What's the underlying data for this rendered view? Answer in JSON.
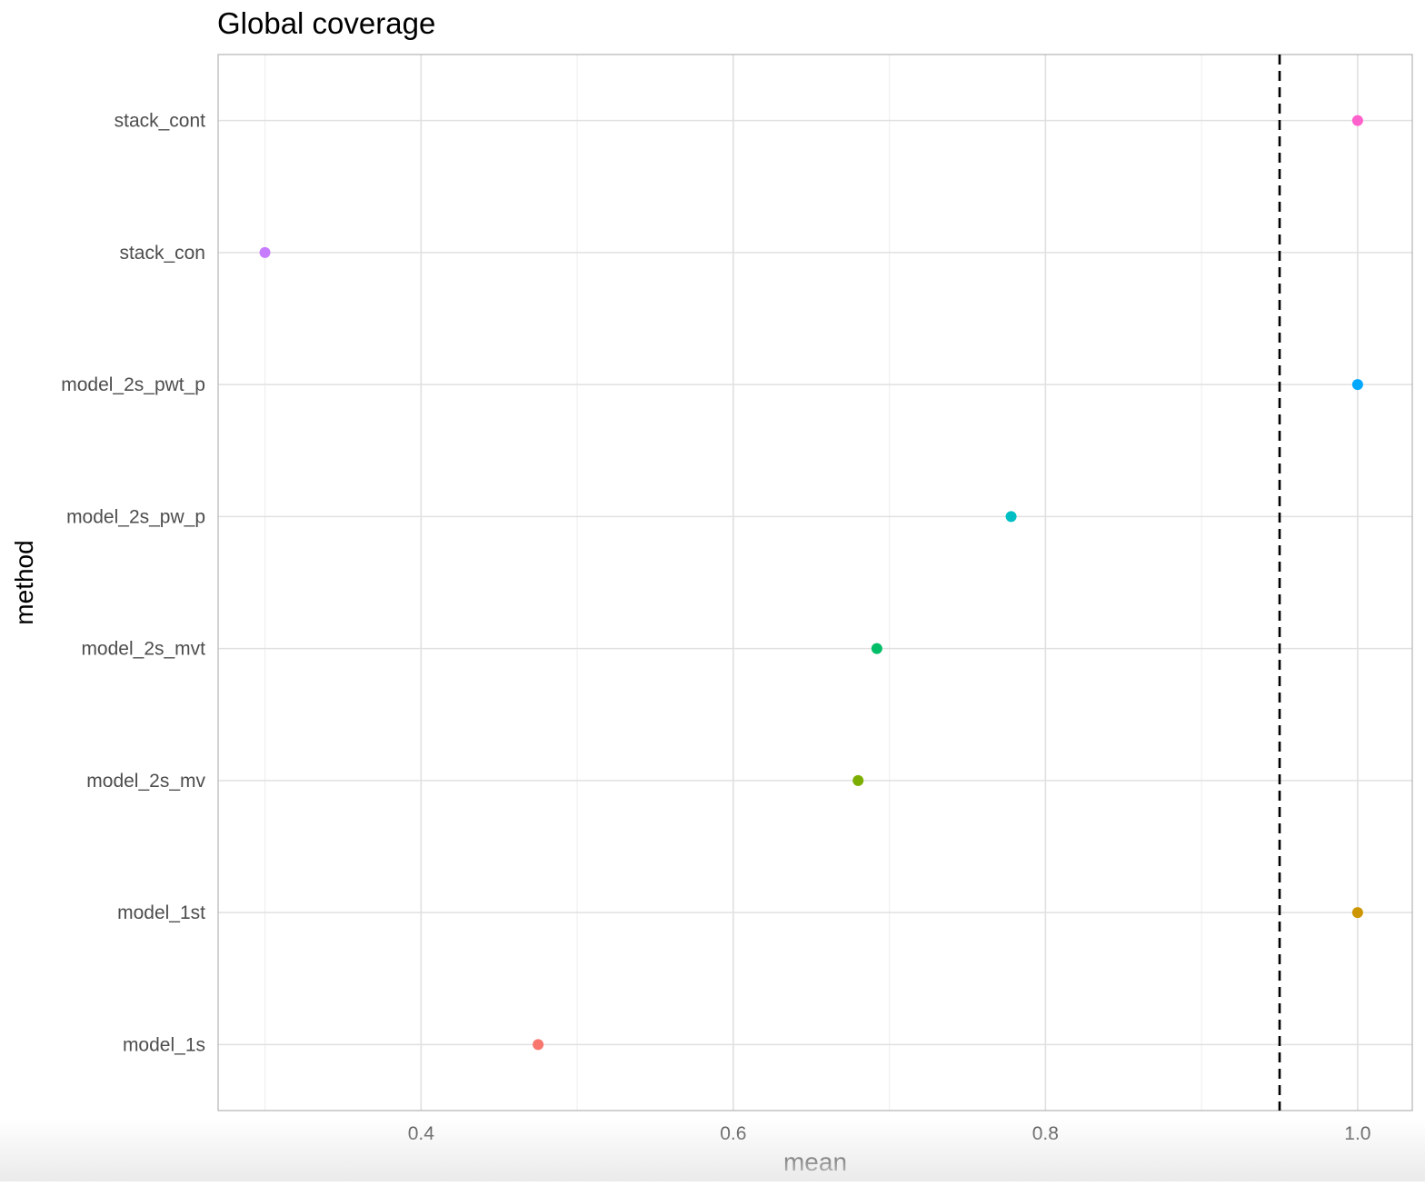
{
  "chart_data": {
    "type": "scatter",
    "title": "Global coverage",
    "xlabel": "mean",
    "ylabel": "method",
    "xlim": [
      0.27,
      1.035
    ],
    "x_ticks": [
      0.4,
      0.6,
      0.8,
      1.0
    ],
    "x_tick_labels": [
      "0.4",
      "0.6",
      "0.8",
      "1.0"
    ],
    "x_minor_ticks": [
      0.3,
      0.5,
      0.7,
      0.9
    ],
    "categories": [
      "model_1s",
      "model_1st",
      "model_2s_mv",
      "model_2s_mvt",
      "model_2s_pw_p",
      "model_2s_pwt_p",
      "stack_con",
      "stack_cont"
    ],
    "points": [
      {
        "method": "model_1s",
        "mean": 0.475,
        "color": "#F8766D"
      },
      {
        "method": "model_1st",
        "mean": 1.0,
        "color": "#CD9600"
      },
      {
        "method": "model_2s_mv",
        "mean": 0.68,
        "color": "#7CAE00"
      },
      {
        "method": "model_2s_mvt",
        "mean": 0.692,
        "color": "#00BE67"
      },
      {
        "method": "model_2s_pw_p",
        "mean": 0.778,
        "color": "#00BFC4"
      },
      {
        "method": "model_2s_pwt_p",
        "mean": 1.0,
        "color": "#00A9FF"
      },
      {
        "method": "stack_con",
        "mean": 0.3,
        "color": "#C77CFF"
      },
      {
        "method": "stack_cont",
        "mean": 1.0,
        "color": "#FF61CC"
      }
    ],
    "reference_line": {
      "x": 0.95,
      "style": "dashed",
      "color": "#000000"
    },
    "grid": true,
    "legend": "none"
  }
}
